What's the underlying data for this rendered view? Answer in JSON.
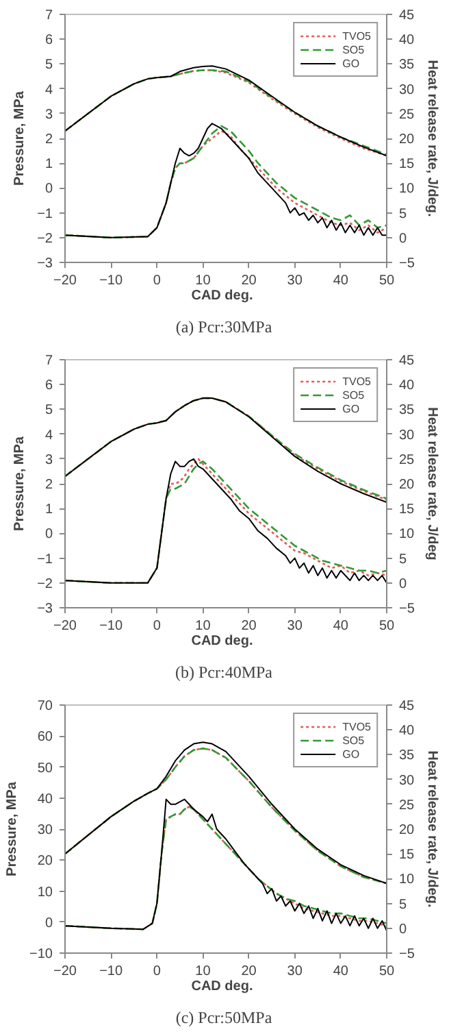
{
  "chart_data": [
    {
      "type": "line",
      "title": "(a)  Pcr:30MPa",
      "xlabel": "CAD   deg.",
      "ylabel": "Pressure, MPa",
      "y2label": "Heat release rate, J/deg.",
      "xlim": [
        -20,
        50
      ],
      "xticks": [
        -20,
        -10,
        0,
        10,
        20,
        30,
        40,
        50
      ],
      "ylim": [
        -3,
        7
      ],
      "yticks": [
        -3,
        -2,
        -1,
        0,
        1,
        2,
        3,
        4,
        5,
        6,
        7
      ],
      "y2lim": [
        -5,
        45
      ],
      "y2ticks": [
        -5,
        0,
        5,
        10,
        15,
        20,
        25,
        30,
        35,
        40,
        45
      ],
      "grid": false,
      "legend": "top right",
      "series": [
        {
          "name": "TVO5",
          "color": "#e05a5a",
          "line_style": "dotted",
          "x": [
            -20,
            -15,
            -10,
            -5,
            -2,
            0,
            3,
            5,
            8,
            10,
            12,
            15,
            20,
            25,
            30,
            35,
            40,
            45,
            50
          ],
          "values": [
            2.3,
            3.0,
            3.7,
            4.2,
            4.4,
            4.45,
            4.5,
            4.6,
            4.72,
            4.75,
            4.75,
            4.65,
            4.25,
            3.6,
            3.0,
            2.45,
            2.0,
            1.6,
            1.3
          ]
        },
        {
          "name": "SO5",
          "color": "#339933",
          "line_style": "dashed",
          "x": [
            -20,
            -15,
            -10,
            -5,
            -2,
            0,
            3,
            5,
            8,
            10,
            12,
            15,
            20,
            25,
            30,
            35,
            40,
            45,
            50
          ],
          "values": [
            2.3,
            3.0,
            3.7,
            4.2,
            4.4,
            4.45,
            4.5,
            4.6,
            4.72,
            4.75,
            4.75,
            4.7,
            4.3,
            3.65,
            3.05,
            2.5,
            2.05,
            1.7,
            1.35
          ]
        },
        {
          "name": "GO",
          "color": "#000000",
          "line_style": "solid",
          "x": [
            -20,
            -15,
            -10,
            -5,
            -2,
            0,
            3,
            5,
            8,
            10,
            12,
            15,
            20,
            25,
            30,
            35,
            40,
            45,
            50
          ],
          "values": [
            2.3,
            3.0,
            3.7,
            4.2,
            4.4,
            4.45,
            4.5,
            4.7,
            4.85,
            4.9,
            4.92,
            4.8,
            4.35,
            3.7,
            3.05,
            2.5,
            2.05,
            1.65,
            1.3
          ]
        },
        {
          "color": "#e05a5a",
          "line_style": "dotted",
          "axis": "y2",
          "x": [
            -20,
            -10,
            -2,
            0,
            2,
            3,
            4,
            5,
            6,
            7,
            8,
            10,
            12,
            14,
            16,
            18,
            20,
            22,
            24,
            26,
            28,
            30,
            32,
            34,
            36,
            38,
            40,
            42,
            44,
            46,
            48,
            50
          ],
          "values": [
            0.5,
            0,
            0.2,
            2,
            7,
            11,
            14,
            15,
            15,
            15.5,
            16,
            18.5,
            20,
            21.5,
            20.5,
            18,
            16,
            14,
            12,
            10,
            8.5,
            7,
            6,
            5,
            4,
            3,
            2.5,
            3,
            1.5,
            2.5,
            1,
            2
          ]
        },
        {
          "color": "#339933",
          "line_style": "dashed",
          "axis": "y2",
          "x": [
            -20,
            -10,
            -2,
            0,
            2,
            3,
            4,
            5,
            6,
            7,
            8,
            10,
            12,
            14,
            16,
            18,
            20,
            22,
            24,
            26,
            28,
            30,
            32,
            34,
            36,
            38,
            40,
            42,
            44,
            46,
            48,
            50
          ],
          "values": [
            0.5,
            0,
            0.2,
            2,
            7,
            11,
            14,
            15,
            15,
            15.5,
            16,
            18.5,
            21,
            22.5,
            21.5,
            19.5,
            17.5,
            15,
            13,
            11,
            9.5,
            8,
            7,
            6,
            5,
            4,
            3.5,
            4.5,
            2.5,
            3.5,
            2,
            2.5
          ]
        },
        {
          "color": "#000000",
          "line_style": "solid",
          "axis": "y2",
          "x": [
            -20,
            -10,
            -2,
            0,
            2,
            3,
            4,
            5,
            6,
            7,
            8,
            9,
            10,
            11,
            12,
            13,
            14,
            16,
            18,
            20,
            22,
            24,
            26,
            28,
            29,
            30,
            31,
            32,
            33,
            34,
            35,
            36,
            37,
            38,
            39,
            40,
            41,
            42,
            43,
            44,
            45,
            46,
            47,
            48,
            49,
            50
          ],
          "values": [
            0.5,
            0,
            0.2,
            2,
            7,
            11,
            15,
            18,
            17,
            16.5,
            17,
            18,
            20,
            22,
            23,
            22.5,
            22,
            20,
            18,
            16,
            13,
            11,
            9,
            7,
            5,
            6,
            4.5,
            5,
            3.5,
            4.5,
            3,
            4,
            2,
            3.5,
            1.5,
            3,
            1,
            2.5,
            1,
            2.5,
            0.5,
            2,
            0.5,
            2,
            0.5,
            0.5
          ]
        }
      ]
    },
    {
      "type": "line",
      "title": "(b)  Pcr:40MPa",
      "xlabel": "CAD   deg.",
      "ylabel": "Pressure, MPa",
      "y2label": "Heat release rate, J/deg",
      "xlim": [
        -20,
        50
      ],
      "xticks": [
        -20,
        -10,
        0,
        10,
        20,
        30,
        40,
        50
      ],
      "ylim": [
        -3,
        7
      ],
      "yticks": [
        -3,
        -2,
        -1,
        0,
        1,
        2,
        3,
        4,
        5,
        6,
        7
      ],
      "y2lim": [
        -5,
        45
      ],
      "y2ticks": [
        -5,
        0,
        5,
        10,
        15,
        20,
        25,
        30,
        35,
        40,
        45
      ],
      "grid": false,
      "legend": "top right",
      "series": [
        {
          "name": "TVO5",
          "color": "#e05a5a",
          "line_style": "dotted",
          "x": [
            -20,
            -15,
            -10,
            -5,
            -2,
            0,
            2,
            4,
            6,
            8,
            10,
            12,
            15,
            20,
            25,
            30,
            35,
            40,
            45,
            50
          ],
          "values": [
            2.3,
            3.0,
            3.7,
            4.2,
            4.4,
            4.45,
            4.55,
            4.9,
            5.15,
            5.35,
            5.45,
            5.45,
            5.3,
            4.72,
            3.95,
            3.15,
            2.6,
            2.1,
            1.7,
            1.35
          ]
        },
        {
          "name": "SO5",
          "color": "#339933",
          "line_style": "dashed",
          "x": [
            -20,
            -15,
            -10,
            -5,
            -2,
            0,
            2,
            4,
            6,
            8,
            10,
            12,
            15,
            20,
            25,
            30,
            35,
            40,
            45,
            50
          ],
          "values": [
            2.3,
            3.0,
            3.7,
            4.2,
            4.4,
            4.45,
            4.55,
            4.9,
            5.15,
            5.35,
            5.45,
            5.45,
            5.3,
            4.72,
            3.95,
            3.2,
            2.65,
            2.15,
            1.75,
            1.4
          ]
        },
        {
          "name": "GO",
          "color": "#000000",
          "line_style": "solid",
          "x": [
            -20,
            -15,
            -10,
            -5,
            -2,
            0,
            2,
            4,
            6,
            8,
            10,
            12,
            15,
            20,
            25,
            30,
            35,
            40,
            45,
            50
          ],
          "values": [
            2.3,
            3.0,
            3.7,
            4.2,
            4.4,
            4.45,
            4.55,
            4.9,
            5.15,
            5.35,
            5.45,
            5.45,
            5.3,
            4.7,
            3.9,
            3.1,
            2.5,
            2.0,
            1.6,
            1.25
          ]
        },
        {
          "color": "#e05a5a",
          "line_style": "dotted",
          "axis": "y2",
          "x": [
            -20,
            -10,
            -2,
            0,
            1,
            2,
            3,
            4,
            5,
            6,
            7,
            8,
            9,
            10,
            12,
            14,
            16,
            18,
            20,
            22,
            24,
            26,
            28,
            30,
            32,
            34,
            36,
            38,
            40,
            42,
            44,
            46,
            48,
            50
          ],
          "values": [
            0.5,
            0,
            0,
            3,
            10,
            17,
            20,
            20,
            20.5,
            21.5,
            23,
            24,
            25,
            24,
            22,
            20,
            18,
            16,
            14,
            12.5,
            11,
            9.5,
            8,
            6.5,
            6,
            5,
            4,
            3,
            3.5,
            2,
            2.5,
            1.5,
            2,
            1.5
          ]
        },
        {
          "color": "#339933",
          "line_style": "dashed",
          "axis": "y2",
          "x": [
            -20,
            -10,
            -2,
            0,
            1,
            2,
            3,
            4,
            5,
            6,
            7,
            8,
            9,
            10,
            12,
            14,
            16,
            18,
            20,
            22,
            24,
            26,
            28,
            30,
            32,
            34,
            36,
            38,
            40,
            42,
            44,
            46,
            48,
            50
          ],
          "values": [
            0.5,
            0,
            0,
            3,
            10,
            17,
            19,
            19,
            19.5,
            20,
            21.5,
            23,
            24,
            24.5,
            23,
            21,
            19,
            17,
            15,
            13.5,
            12,
            10.5,
            9,
            7.5,
            6.5,
            5.5,
            4.5,
            4,
            3.5,
            3,
            2.5,
            2.5,
            2,
            2.5
          ]
        },
        {
          "color": "#000000",
          "line_style": "solid",
          "axis": "y2",
          "x": [
            -20,
            -10,
            -2,
            0,
            1,
            2,
            3,
            4,
            5,
            6,
            7,
            8,
            9,
            10,
            11,
            12,
            14,
            16,
            18,
            20,
            22,
            24,
            26,
            28,
            29,
            30,
            31,
            32,
            33,
            34,
            35,
            36,
            37,
            38,
            39,
            40,
            42,
            43,
            44,
            45,
            46,
            47,
            48,
            49,
            50
          ],
          "values": [
            0.5,
            0,
            0,
            3,
            10,
            17,
            22,
            24.5,
            23.5,
            23.5,
            24.5,
            25,
            23.5,
            23,
            22,
            21,
            19,
            17,
            14.5,
            13,
            10.5,
            9,
            7,
            5.5,
            4,
            5,
            3,
            4,
            2,
            3.5,
            1.5,
            3,
            1,
            2.5,
            1,
            2.5,
            0.5,
            2,
            0.5,
            1.5,
            0.5,
            1.5,
            0.5,
            1.5,
            0
          ]
        }
      ]
    },
    {
      "type": "line",
      "title": "(c)  Pcr:50MPa",
      "xlabel": "CAD   deg.",
      "ylabel": "Pressure, MPa",
      "y2label": "Heat release rate, J/deg.",
      "xlim": [
        -20,
        50
      ],
      "xticks": [
        -20,
        -10,
        0,
        10,
        20,
        30,
        40,
        50
      ],
      "ylim": [
        -10,
        70
      ],
      "yticks": [
        -10,
        0,
        10,
        20,
        30,
        40,
        50,
        60,
        70
      ],
      "y2lim": [
        -5,
        45
      ],
      "y2ticks": [
        -5,
        0,
        5,
        10,
        15,
        20,
        25,
        30,
        35,
        40,
        45
      ],
      "grid": false,
      "legend": "top right",
      "series": [
        {
          "name": "TVO5",
          "color": "#e05a5a",
          "line_style": "dotted",
          "x": [
            -20,
            -15,
            -10,
            -5,
            -2,
            0,
            2,
            4,
            6,
            8,
            10,
            12,
            15,
            20,
            25,
            30,
            35,
            40,
            45,
            50
          ],
          "values": [
            22,
            28,
            34,
            39,
            41.5,
            43,
            46,
            50,
            53.5,
            55.5,
            56,
            55.5,
            53,
            45.5,
            37,
            29.5,
            23,
            18,
            14.5,
            12.5
          ]
        },
        {
          "name": "SO5",
          "color": "#339933",
          "line_style": "dashed",
          "x": [
            -20,
            -15,
            -10,
            -5,
            -2,
            0,
            2,
            4,
            6,
            8,
            10,
            12,
            15,
            20,
            25,
            30,
            35,
            40,
            45,
            50
          ],
          "values": [
            22,
            28,
            34,
            39,
            41.5,
            43,
            46,
            50,
            53.5,
            55.5,
            56,
            55.5,
            53,
            45.5,
            37,
            29.5,
            23,
            18,
            14.5,
            12.5
          ]
        },
        {
          "name": "GO",
          "color": "#000000",
          "line_style": "solid",
          "x": [
            -20,
            -15,
            -10,
            -5,
            -2,
            0,
            2,
            4,
            6,
            8,
            10,
            12,
            15,
            20,
            25,
            30,
            35,
            40,
            45,
            50
          ],
          "values": [
            22,
            28,
            34,
            39,
            41.5,
            43,
            47,
            52,
            55.5,
            57.5,
            58,
            57.5,
            55,
            47,
            38,
            30,
            23.5,
            18.5,
            15,
            12.5
          ]
        },
        {
          "color": "#e05a5a",
          "line_style": "dotted",
          "axis": "y2",
          "x": [
            -20,
            -10,
            -3,
            -1,
            0,
            1,
            2,
            3,
            4,
            5,
            6,
            7,
            8,
            10,
            12,
            14,
            16,
            18,
            20,
            22,
            24,
            26,
            28,
            30,
            32,
            34,
            36,
            38,
            40,
            42,
            44,
            46,
            48,
            50
          ],
          "values": [
            0.5,
            0,
            -0.2,
            1,
            5,
            15,
            22,
            22.5,
            23,
            23,
            24,
            24.5,
            24,
            22,
            20,
            18,
            16,
            14,
            12,
            10,
            8.5,
            7,
            6,
            5,
            4,
            3.5,
            3,
            2.5,
            2.5,
            2,
            1.5,
            1.5,
            1,
            0.5
          ]
        },
        {
          "color": "#339933",
          "line_style": "dashed",
          "axis": "y2",
          "x": [
            -20,
            -10,
            -3,
            -1,
            0,
            1,
            2,
            3,
            4,
            5,
            6,
            7,
            8,
            10,
            12,
            14,
            16,
            18,
            20,
            22,
            24,
            26,
            28,
            30,
            32,
            34,
            36,
            38,
            40,
            42,
            44,
            46,
            48,
            50
          ],
          "values": [
            0.5,
            0,
            -0.2,
            1,
            5,
            15,
            22,
            22.5,
            23,
            23,
            24,
            24.5,
            24,
            22,
            20,
            18,
            16,
            14,
            12,
            10,
            8.5,
            7,
            6,
            5.5,
            4.5,
            4,
            3.5,
            3,
            3,
            2.5,
            2,
            2,
            1.5,
            1
          ]
        },
        {
          "color": "#000000",
          "line_style": "solid",
          "axis": "y2",
          "x": [
            -20,
            -10,
            -3,
            -1,
            0,
            1,
            2,
            3,
            4,
            5,
            6,
            7,
            8,
            10,
            11,
            12,
            13,
            15,
            17,
            19,
            21,
            23,
            24,
            25,
            26,
            27,
            28,
            29,
            30,
            31,
            32,
            33,
            34,
            35,
            36,
            37,
            38,
            39,
            40,
            41,
            42,
            43,
            44,
            45,
            46,
            47,
            48,
            49,
            50
          ],
          "values": [
            0.5,
            0,
            -0.2,
            1,
            5,
            15,
            26,
            25,
            25,
            25.5,
            26,
            25,
            24,
            22.5,
            21.5,
            23,
            20,
            18,
            15.5,
            13,
            11,
            9,
            7,
            8,
            5.5,
            6.5,
            4.5,
            5.5,
            3.5,
            5,
            3,
            4.5,
            2,
            4,
            1.5,
            3.5,
            1,
            3,
            1,
            2.5,
            0.5,
            2.5,
            0.5,
            2,
            0,
            2,
            0,
            1.5,
            -0.5
          ]
        }
      ]
    }
  ]
}
